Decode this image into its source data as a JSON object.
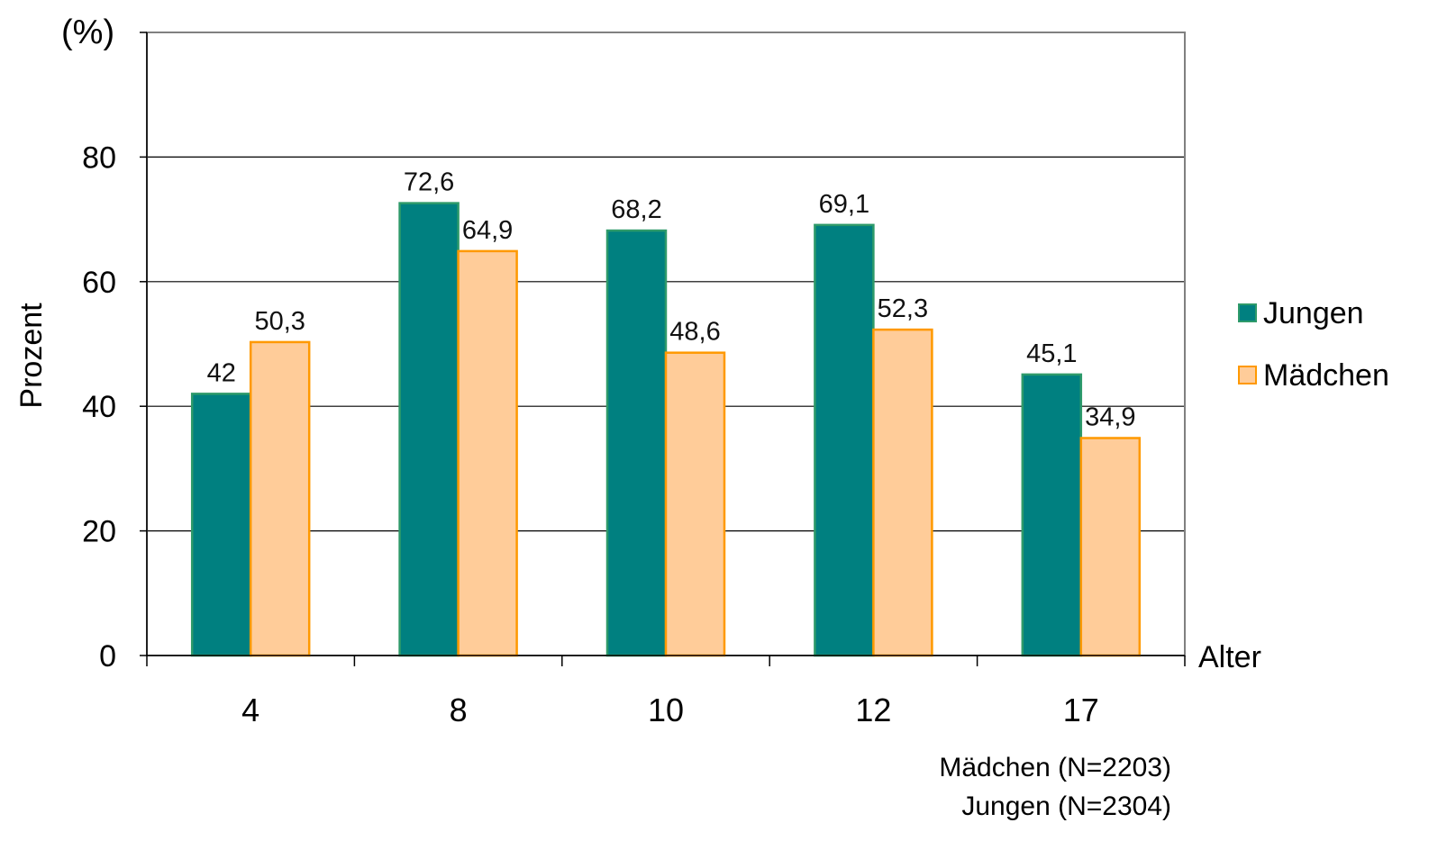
{
  "chart_data": {
    "type": "bar",
    "unit_label": "(%)",
    "ylabel": "Prozent",
    "xlabel": "Alter",
    "ylim": [
      0,
      100
    ],
    "yticks": [
      0,
      20,
      40,
      60,
      80
    ],
    "grid": true,
    "legend_position": "right",
    "categories": [
      "4",
      "8",
      "10",
      "12",
      "17"
    ],
    "series": [
      {
        "name": "Jungen",
        "values": [
          42,
          72.6,
          68.2,
          69.1,
          45.1
        ],
        "labels": [
          "42",
          "72,6",
          "68,2",
          "69,1",
          "45,1"
        ],
        "color": "#008080",
        "border": "#2e9a6a"
      },
      {
        "name": "Mädchen",
        "values": [
          50.3,
          64.9,
          48.6,
          52.3,
          34.9
        ],
        "labels": [
          "50,3",
          "64,9",
          "48,6",
          "52,3",
          "34,9"
        ],
        "color": "#ffcc99",
        "border": "#ff9900"
      }
    ],
    "notes": [
      "Mädchen (N=2203)",
      "Jungen (N=2304)"
    ]
  }
}
